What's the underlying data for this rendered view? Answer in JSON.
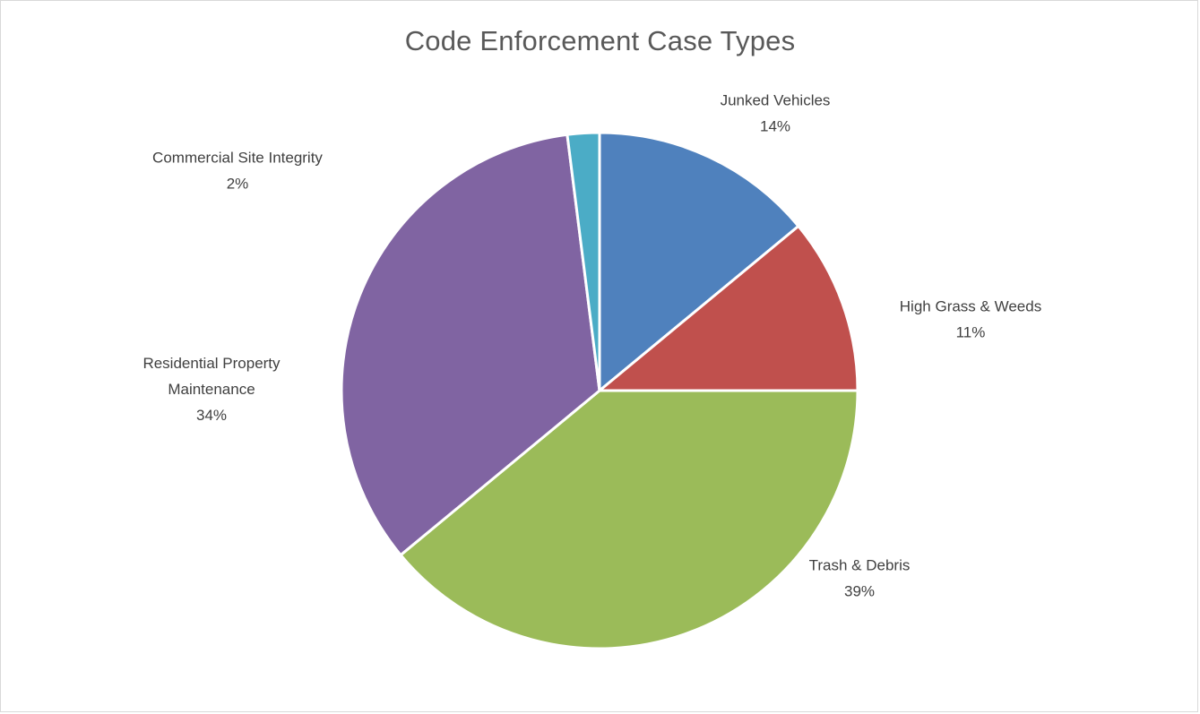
{
  "chart_data": {
    "type": "pie",
    "title": "Code Enforcement Case Types",
    "slices": [
      {
        "label": "Junked Vehicles",
        "value": 14,
        "percent_label": "14%",
        "color": "#4f81bd"
      },
      {
        "label": "High Grass & Weeds",
        "value": 11,
        "percent_label": "11%",
        "color": "#c0504d"
      },
      {
        "label": "Trash & Debris",
        "value": 39,
        "percent_label": "39%",
        "color": "#9bbb59"
      },
      {
        "label": "Residential Property Maintenance",
        "value": 34,
        "percent_label": "34%",
        "color": "#8064a2"
      },
      {
        "label": "Commercial Site Integrity",
        "value": 2,
        "percent_label": "2%",
        "color": "#4bacc6"
      }
    ],
    "start_angle": "12 o'clock",
    "direction": "clockwise",
    "legend": "none",
    "data_labels": "category name and percentage"
  }
}
